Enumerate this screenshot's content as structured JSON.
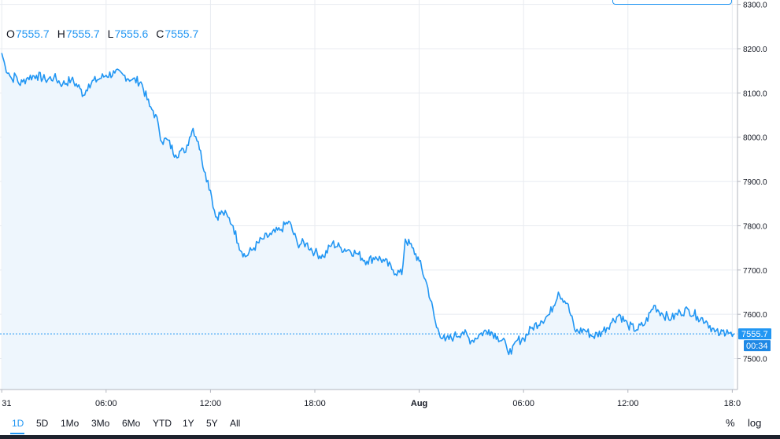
{
  "legend": {
    "o_key": "O",
    "o_val": "7555.7",
    "h_key": "H",
    "h_val": "7555.7",
    "l_key": "L",
    "l_val": "7555.6",
    "c_key": "C",
    "c_val": "7555.7"
  },
  "price_badge": "7555.7",
  "countdown_badge": "00:34",
  "range_buttons": [
    "1D",
    "5D",
    "1Mo",
    "3Mo",
    "6Mo",
    "YTD",
    "1Y",
    "5Y",
    "All"
  ],
  "active_range": "1D",
  "toggles": {
    "percent": "%",
    "log": "log"
  },
  "colors": {
    "line": "#2196f3",
    "fill": "#eef6fd",
    "grid": "#e8ebf0",
    "badge": "#2196f3",
    "countdown": "#1e88e5"
  },
  "chart_data": {
    "type": "area",
    "y_unit": "price",
    "ylim": [
      7430,
      8310
    ],
    "y_ticks": [
      7500,
      7600,
      7700,
      7800,
      7900,
      8000,
      8100,
      8200,
      8300
    ],
    "y_tick_labels": [
      "7500.0",
      "7600.0",
      "7700.0",
      "7800.0",
      "7900.0",
      "8000.0",
      "8100.0",
      "8200.0",
      "8300.0"
    ],
    "x_ticks": [
      "31",
      "06:00",
      "12:00",
      "18:00",
      "Aug",
      "06:00",
      "12:00",
      "18:0"
    ],
    "x_tick_hours": [
      0,
      6,
      12,
      18,
      24,
      30,
      36,
      42
    ],
    "xlim_hours": [
      -0.1,
      42.3
    ],
    "last_price": 7555.7,
    "series": [
      {
        "x": [
          0,
          0.2,
          0.4,
          0.6,
          0.8,
          1,
          1.2,
          1.5,
          2,
          2.5,
          3,
          3.5,
          4,
          4.5,
          4.7,
          5,
          5.5,
          6,
          6.5,
          7,
          7.5,
          8,
          8.5,
          8.7,
          9,
          9.2,
          9.5,
          10,
          10.3,
          10.5,
          10.8,
          11,
          11.3,
          11.5,
          11.7,
          12,
          12.3,
          12.7,
          13,
          13.3,
          13.6,
          14,
          14.5,
          15,
          15.5,
          16,
          16.5,
          17,
          17.5,
          18,
          18.5,
          19,
          19.5,
          20,
          20.5,
          21,
          21.5,
          22,
          22.5,
          23,
          23.2,
          23.6,
          24,
          24.5,
          25,
          25.5,
          26,
          26.5,
          27,
          27.5,
          28,
          28.5,
          29,
          29.3,
          29.6,
          30,
          30.5,
          31,
          31.5,
          32,
          32.5,
          33,
          33.5,
          34,
          34.5,
          35,
          35.5,
          36,
          36.5,
          37,
          37.5,
          38,
          38.5,
          39,
          39.5,
          40,
          40.5,
          41,
          41.3,
          41.7,
          42,
          42.1
        ],
        "y": [
          8190,
          8160,
          8145,
          8130,
          8140,
          8120,
          8125,
          8135,
          8140,
          8130,
          8135,
          8120,
          8130,
          8110,
          8095,
          8120,
          8130,
          8140,
          8145,
          8140,
          8130,
          8125,
          8070,
          8060,
          8030,
          7990,
          7995,
          7960,
          7970,
          7965,
          8000,
          8020,
          7990,
          7950,
          7920,
          7880,
          7820,
          7830,
          7820,
          7800,
          7760,
          7730,
          7750,
          7770,
          7780,
          7790,
          7810,
          7760,
          7760,
          7740,
          7730,
          7760,
          7750,
          7745,
          7735,
          7720,
          7730,
          7720,
          7700,
          7690,
          7770,
          7750,
          7720,
          7660,
          7570,
          7540,
          7550,
          7560,
          7540,
          7555,
          7565,
          7550,
          7530,
          7510,
          7540,
          7545,
          7570,
          7585,
          7600,
          7650,
          7625,
          7560,
          7565,
          7550,
          7560,
          7580,
          7600,
          7575,
          7565,
          7580,
          7620,
          7600,
          7590,
          7605,
          7610,
          7595,
          7585,
          7560,
          7555,
          7565,
          7550,
          7555.7
        ]
      }
    ]
  }
}
